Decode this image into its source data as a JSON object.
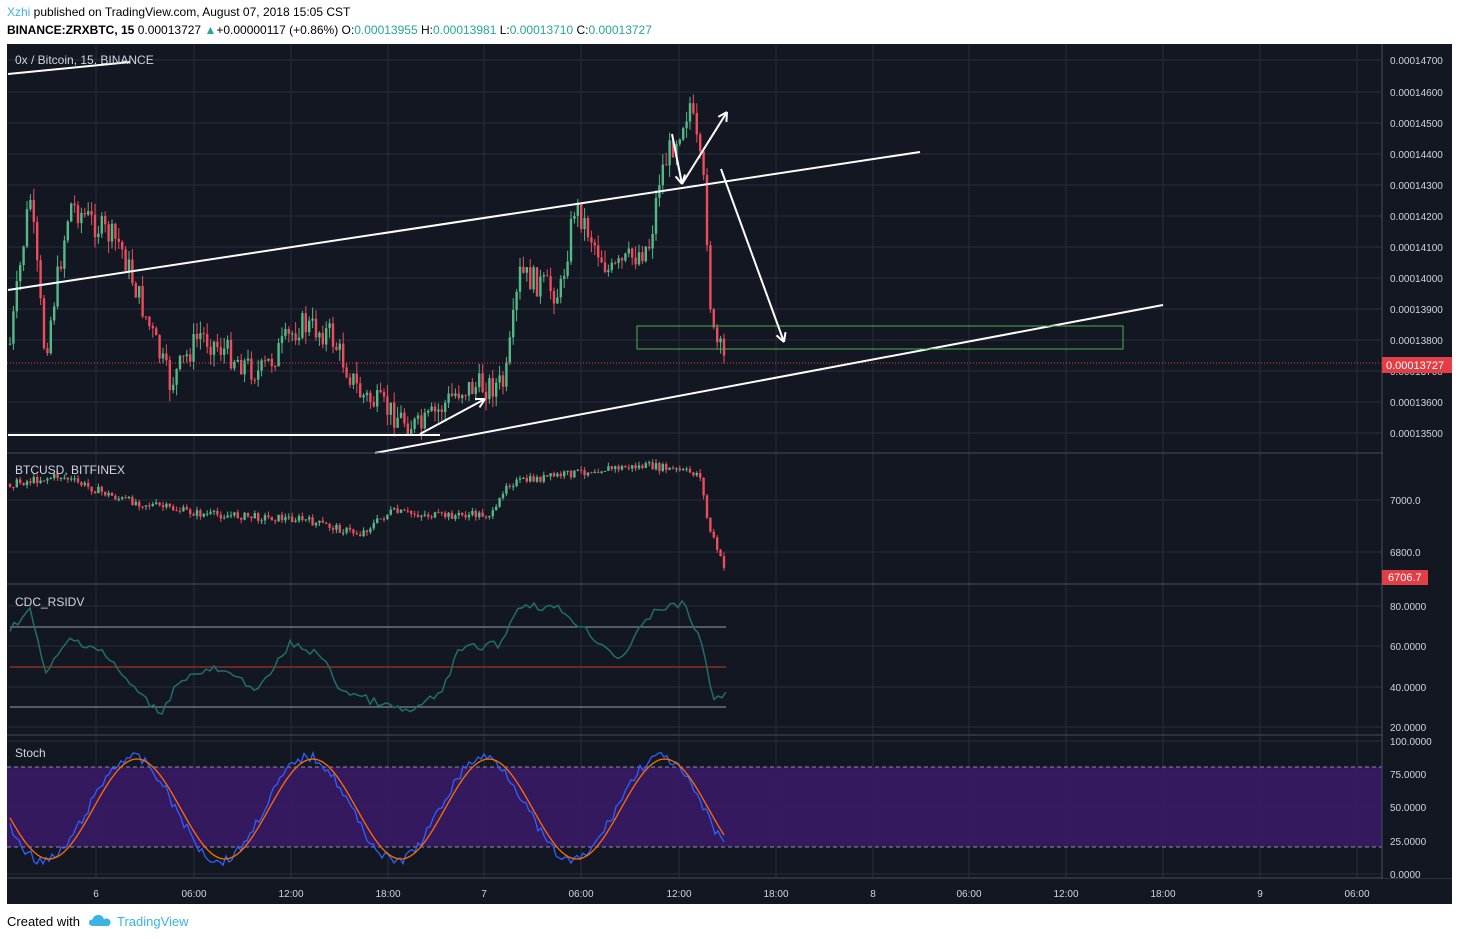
{
  "header": {
    "author": "Xzhi",
    "published": " published on TradingView.com, August 07, 2018 15:05 CST",
    "symbol": "BINANCE:ZRXBTC, 15",
    "last": "0.00013727",
    "change_arrow": "▲",
    "change": "+0.00000117 (+0.86%)",
    "o_label": "O:",
    "o_value": "0.00013955",
    "h_label": "H:",
    "h_value": "0.00013981",
    "l_label": "L:",
    "l_value": "0.00013710",
    "c_label": "C:",
    "c_value": "0.00013727"
  },
  "colors": {
    "background": "#131722",
    "grid": "#2a2e39",
    "up": "#53b987",
    "down": "#eb4d5c",
    "price_tag": "#e33e45",
    "rsi_line": "#1f6f6b",
    "stoch_k": "#2962ff",
    "stoch_d": "#ff6d00",
    "stoch_band": "#3a1a66",
    "drawing": "#ffffff",
    "target_box": "#4caf50"
  },
  "panes": {
    "main": {
      "title": "0x / Bitcoin, 15, BINANCE",
      "price_axis": [
        "0.00014700",
        "0.00014600",
        "0.00014500",
        "0.00014400",
        "0.00014300",
        "0.00014200",
        "0.00014100",
        "0.00014000",
        "0.00013900",
        "0.00013800",
        "0.00013700",
        "0.00013600",
        "0.00013500"
      ],
      "last_price_tag": "0.00013727"
    },
    "btc": {
      "title": "BTCUSD, BITFINEX",
      "axis": [
        "7000.0",
        "6800.0"
      ],
      "last_price_tag": "6706.7"
    },
    "rsi": {
      "title": "CDC_RSIDV",
      "axis": [
        "80.0000",
        "60.0000",
        "40.0000",
        "20.0000"
      ]
    },
    "stoch": {
      "title": "Stoch",
      "axis": [
        "100.0000",
        "75.0000",
        "50.0000",
        "25.0000",
        "0.0000"
      ]
    }
  },
  "time_axis": [
    "6",
    "06:00",
    "12:00",
    "18:00",
    "7",
    "06:00",
    "12:00",
    "18:00",
    "8",
    "06:00",
    "12:00",
    "18:00",
    "9",
    "06:00"
  ],
  "footer": {
    "created_with": "Created with",
    "brand": "TradingView",
    "brand_icon": "tradingview-cloud-icon"
  }
}
